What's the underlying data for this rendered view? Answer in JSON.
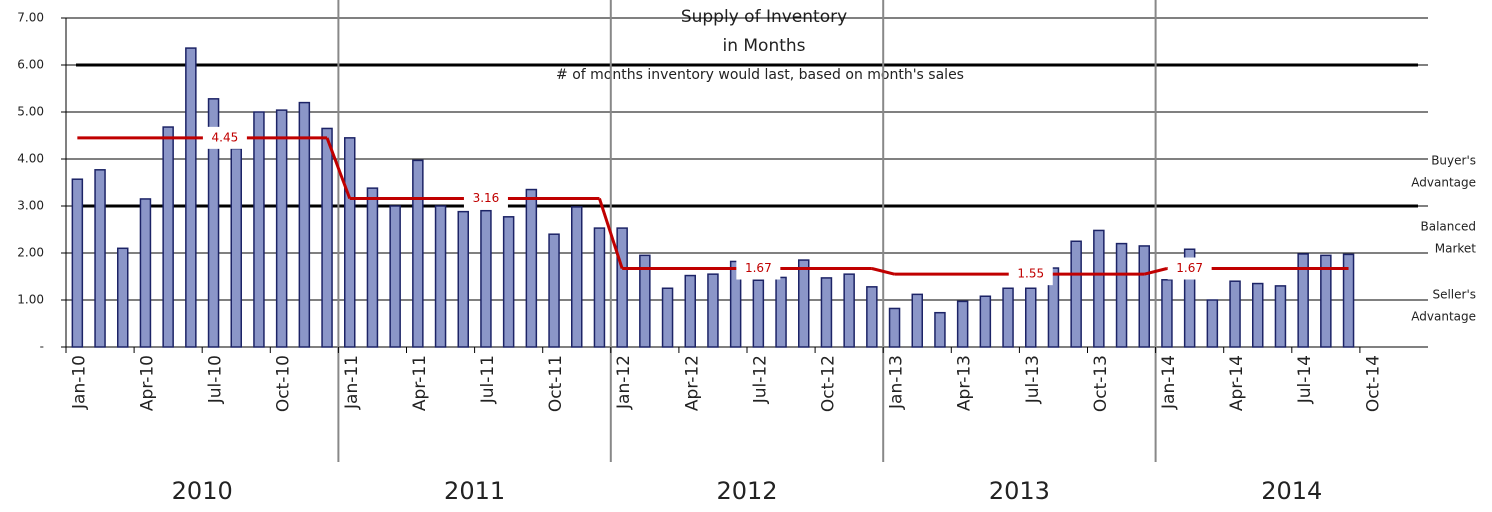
{
  "chart_data": {
    "type": "bar",
    "title": [
      "Supply of Inventory",
      "in Months"
    ],
    "subtitle": "# of months inventory would last, based on month's sales",
    "categories": [
      "Jan-10",
      null,
      null,
      "Apr-10",
      null,
      null,
      "Jul-10",
      null,
      null,
      "Oct-10",
      null,
      null,
      "Jan-11",
      null,
      null,
      "Apr-11",
      null,
      null,
      "Jul-11",
      null,
      null,
      "Oct-11",
      null,
      null,
      "Jan-12",
      null,
      null,
      "Apr-12",
      null,
      null,
      "Jul-12",
      null,
      null,
      "Oct-12",
      null,
      null,
      "Jan-13",
      null,
      null,
      "Apr-13",
      null,
      null,
      "Jul-13",
      null,
      null,
      "Oct-13",
      null,
      null,
      "Jan-14",
      null,
      null,
      "Apr-14",
      null,
      null,
      "Jul-14",
      null,
      null,
      "Oct-14",
      null,
      null
    ],
    "values": [
      3.57,
      3.77,
      2.1,
      3.15,
      4.68,
      6.36,
      5.28,
      4.22,
      5.0,
      5.04,
      5.2,
      4.65,
      4.45,
      3.38,
      3.0,
      3.97,
      3.0,
      2.88,
      2.9,
      2.77,
      3.35,
      2.4,
      2.98,
      2.53,
      2.53,
      1.95,
      1.25,
      1.52,
      1.55,
      1.82,
      1.42,
      1.48,
      1.85,
      1.47,
      1.55,
      1.28,
      0.82,
      1.12,
      0.73,
      0.97,
      1.08,
      1.25,
      1.25,
      1.68,
      2.25,
      2.48,
      2.2,
      2.15,
      1.43,
      2.08,
      1.0,
      1.4,
      1.35,
      1.3,
      1.98,
      1.95,
      1.97,
      null,
      null,
      null
    ],
    "color": "#8b96c8",
    "edge_color": "#1c2366",
    "years": [
      "2010",
      "2011",
      "2012",
      "2013",
      "2014"
    ],
    "averages": {
      "values": [
        4.45,
        3.16,
        1.67,
        1.55,
        1.67
      ],
      "color": "#c00000"
    },
    "reference_lines": [
      6,
      3
    ],
    "zones": [
      [
        "Buyer's",
        "Advantage"
      ],
      [
        "Balanced",
        "Market"
      ],
      [
        "Seller's",
        "Advantage"
      ]
    ],
    "ylim": [
      0,
      7
    ],
    "yticks": [
      {
        "value": 0,
        "label": "-"
      },
      {
        "value": 1,
        "label": "1.00"
      },
      {
        "value": 2,
        "label": "2.00"
      },
      {
        "value": 3,
        "label": "3.00"
      },
      {
        "value": 4,
        "label": "4.00"
      },
      {
        "value": 5,
        "label": "5.00"
      },
      {
        "value": 6,
        "label": "6.00"
      },
      {
        "value": 7,
        "label": "7.00"
      }
    ],
    "grid": true
  }
}
